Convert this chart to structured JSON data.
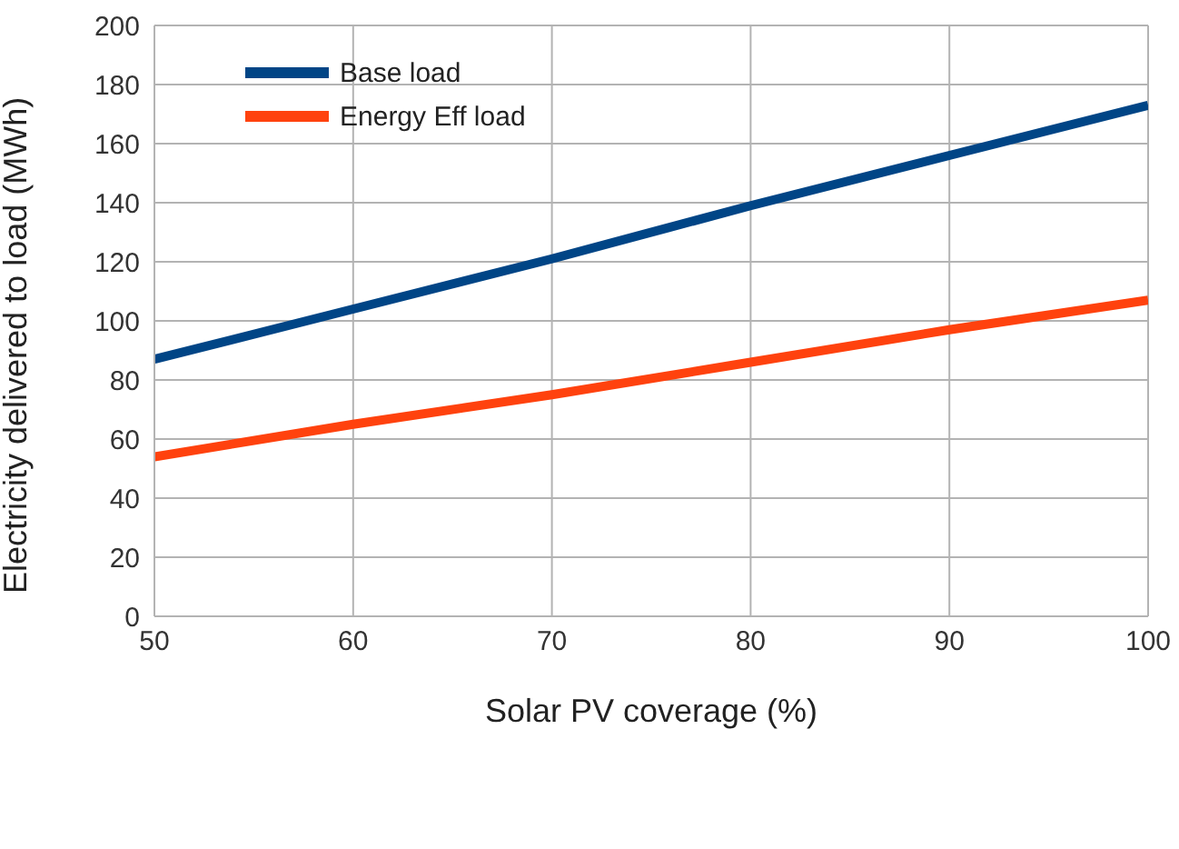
{
  "chart_data": {
    "type": "line",
    "xlabel": "Solar PV coverage (%)",
    "ylabel": "Electricity delivered to load (MWh)",
    "x": [
      50,
      60,
      70,
      80,
      90,
      100
    ],
    "series": [
      {
        "name": "Base load",
        "color": "#004586",
        "values": [
          87,
          104,
          121,
          139,
          156,
          173
        ]
      },
      {
        "name": "Energy Eff load",
        "color": "#ff420e",
        "values": [
          54,
          65,
          75,
          86,
          97,
          107
        ]
      }
    ],
    "xlim": [
      50,
      100
    ],
    "xticks": [
      50,
      60,
      70,
      80,
      90,
      100
    ],
    "ylim": [
      0,
      200
    ],
    "yticks": [
      0,
      20,
      40,
      60,
      80,
      100,
      120,
      140,
      160,
      180,
      200
    ],
    "grid": true,
    "legend": "top left"
  }
}
